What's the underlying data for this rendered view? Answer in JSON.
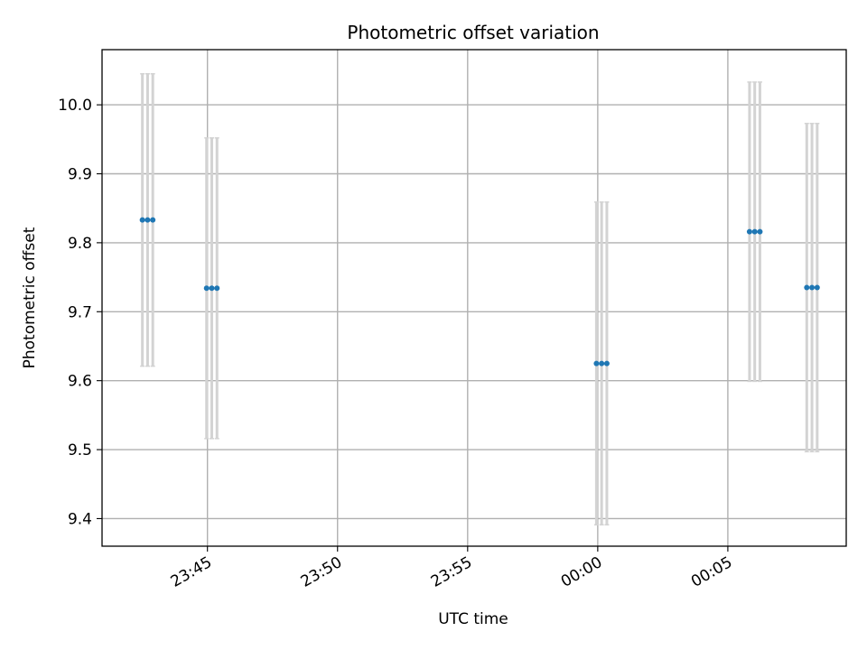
{
  "chart_data": {
    "type": "scatter",
    "title": "Photometric offset variation",
    "xlabel": "UTC time",
    "ylabel": "Photometric offset",
    "grid": true,
    "x_ticks": [
      "23:45",
      "23:50",
      "23:55",
      "00:00",
      "00:05"
    ],
    "y_ticks": [
      "9.4",
      "9.5",
      "9.6",
      "9.7",
      "9.8",
      "9.9",
      "10.0"
    ],
    "ylim": [
      9.36,
      10.08
    ],
    "xlim": [
      "23:40:57",
      "00:09:33"
    ],
    "colors": {
      "point": "#1f77b4",
      "errorbar": "#d3d3d3",
      "grid": "#b0b0b0"
    },
    "groups": [
      {
        "times": [
          "23:42:30",
          "23:42:42",
          "23:42:54"
        ],
        "value": 9.833,
        "error": 0.212
      },
      {
        "times": [
          "23:44:58",
          "23:45:10",
          "23:45:22"
        ],
        "value": 9.734,
        "error": 0.218
      },
      {
        "times": [
          "23:59:57",
          "00:00:09",
          "00:00:21"
        ],
        "value": 9.625,
        "error": 0.234
      },
      {
        "times": [
          "00:05:50",
          "00:06:02",
          "00:06:14"
        ],
        "value": 9.816,
        "error": 0.217
      },
      {
        "times": [
          "00:08:02",
          "00:08:14",
          "00:08:26"
        ],
        "value": 9.735,
        "error": 0.238
      }
    ]
  }
}
